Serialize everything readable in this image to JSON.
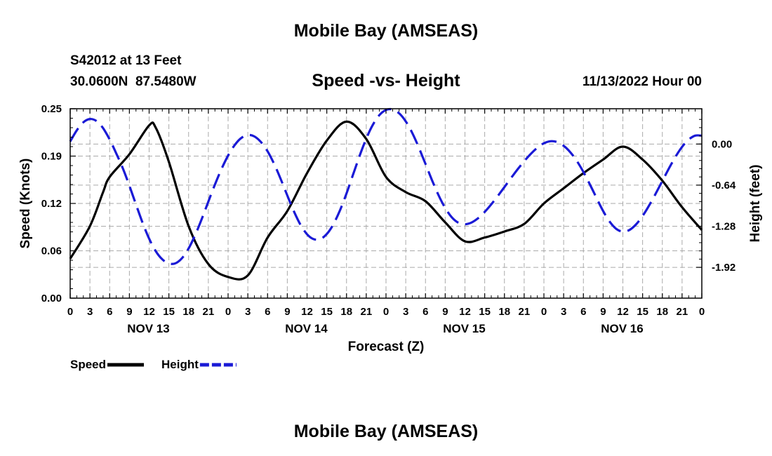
{
  "header": {
    "title": "Mobile Bay (AMSEAS)",
    "station": "S42012 at 13 Feet",
    "coords": "30.0600N  87.5480W",
    "date": "11/13/2022 Hour 00",
    "footer_title": "Mobile Bay (AMSEAS)"
  },
  "chart_data": {
    "type": "line",
    "title": "Speed -vs- Height",
    "xlabel": "Forecast (Z)",
    "ylabel": "Speed (Knots)",
    "y2label": "Height (feet)",
    "xlim": [
      0,
      96
    ],
    "ylim": [
      0.0,
      0.25
    ],
    "y2lim": [
      -2.4,
      0.55
    ],
    "x_ticks": [
      0,
      3,
      6,
      9,
      12,
      15,
      18,
      21,
      24,
      27,
      30,
      33,
      36,
      39,
      42,
      45,
      48,
      51,
      54,
      57,
      60,
      63,
      66,
      69,
      72,
      75,
      78,
      81,
      84,
      87,
      90,
      93,
      96
    ],
    "x_tick_labels": [
      "0",
      "3",
      "6",
      "9",
      "12",
      "15",
      "18",
      "21",
      "0",
      "3",
      "6",
      "9",
      "12",
      "15",
      "18",
      "21",
      "0",
      "3",
      "6",
      "9",
      "12",
      "15",
      "18",
      "21",
      "0",
      "3",
      "6",
      "9",
      "12",
      "15",
      "18",
      "21",
      "0"
    ],
    "date_labels": [
      {
        "x": 12,
        "label": "NOV 13"
      },
      {
        "x": 36,
        "label": "NOV 14"
      },
      {
        "x": 60,
        "label": "NOV 15"
      },
      {
        "x": 84,
        "label": "NOV 16"
      }
    ],
    "y_ticks": [
      0.0,
      0.0625,
      0.125,
      0.1875,
      0.25
    ],
    "y_tick_labels": [
      "0.00",
      "0.06",
      "0.12",
      "0.19",
      "0.25"
    ],
    "y2_ticks": [
      0.0,
      -0.64,
      -1.28,
      -1.92
    ],
    "y2_tick_labels": [
      "0.00",
      "-0.64",
      "-1.28",
      "-1.92"
    ],
    "series": [
      {
        "name": "Speed",
        "axis": "left",
        "color": "#000000",
        "dash": "solid",
        "x": [
          0,
          3,
          5,
          6,
          9,
          12,
          13,
          15,
          18,
          21,
          24,
          27,
          30,
          33,
          36,
          39,
          42,
          45,
          48,
          51,
          54,
          57,
          60,
          63,
          66,
          69,
          72,
          75,
          78,
          81,
          84,
          87,
          90,
          93,
          96
        ],
        "y": [
          0.052,
          0.095,
          0.14,
          0.16,
          0.19,
          0.228,
          0.225,
          0.18,
          0.095,
          0.045,
          0.028,
          0.03,
          0.08,
          0.115,
          0.165,
          0.208,
          0.233,
          0.21,
          0.16,
          0.14,
          0.128,
          0.1,
          0.075,
          0.08,
          0.088,
          0.098,
          0.125,
          0.145,
          0.165,
          0.183,
          0.2,
          0.183,
          0.155,
          0.12,
          0.09
        ]
      },
      {
        "name": "Height",
        "axis": "right",
        "color": "#1a1ad6",
        "dash": "dashed",
        "x": [
          0,
          1,
          2,
          3,
          4,
          5,
          6,
          7,
          8,
          9,
          10,
          11,
          12,
          13,
          14,
          15,
          16,
          17,
          18,
          19,
          20,
          21,
          22,
          23,
          24,
          25,
          26,
          27,
          28,
          29,
          30,
          31,
          32,
          33,
          34,
          35,
          36,
          37,
          38,
          39,
          40,
          41,
          42,
          43,
          44,
          45,
          46,
          47,
          48,
          49,
          50,
          51,
          52,
          53,
          54,
          55,
          56,
          57,
          58,
          59,
          60,
          61,
          62,
          63,
          64,
          65,
          66,
          67,
          68,
          69,
          70,
          71,
          72,
          73,
          74,
          75,
          76,
          77,
          78,
          79,
          80,
          81,
          82,
          83,
          84,
          85,
          86,
          87,
          88,
          89,
          90,
          91,
          92,
          93,
          94,
          95,
          96
        ],
        "y": [
          0.04,
          0.214,
          0.339,
          0.39,
          0.358,
          0.247,
          0.071,
          -0.145,
          -0.378,
          -0.65,
          -0.941,
          -1.224,
          -1.474,
          -1.668,
          -1.796,
          -1.86,
          -1.857,
          -1.776,
          -1.625,
          -1.416,
          -1.166,
          -0.895,
          -0.63,
          -0.388,
          -0.179,
          -0.016,
          0.094,
          0.141,
          0.118,
          0.03,
          -0.113,
          -0.31,
          -0.546,
          -0.801,
          -1.048,
          -1.256,
          -1.405,
          -1.481,
          -1.48,
          -1.401,
          -1.249,
          -1.033,
          -0.768,
          -0.474,
          -0.18,
          0.085,
          0.301,
          0.452,
          0.531,
          0.539,
          0.478,
          0.353,
          0.171,
          -0.058,
          -0.31,
          -0.564,
          -0.799,
          -0.996,
          -1.141,
          -1.225,
          -1.249,
          -1.222,
          -1.154,
          -1.057,
          -0.939,
          -0.808,
          -0.669,
          -0.529,
          -0.394,
          -0.268,
          -0.154,
          -0.058,
          0.012,
          0.044,
          0.031,
          -0.027,
          -0.126,
          -0.263,
          -0.434,
          -0.631,
          -0.841,
          -1.043,
          -1.21,
          -1.322,
          -1.364,
          -1.338,
          -1.252,
          -1.12,
          -0.955,
          -0.77,
          -0.575,
          -0.38,
          -0.198,
          -0.043,
          0.07,
          0.131,
          0.131
        ]
      }
    ],
    "legend": {
      "position": "bottom-left",
      "entries": [
        "Speed",
        "Height"
      ]
    }
  }
}
